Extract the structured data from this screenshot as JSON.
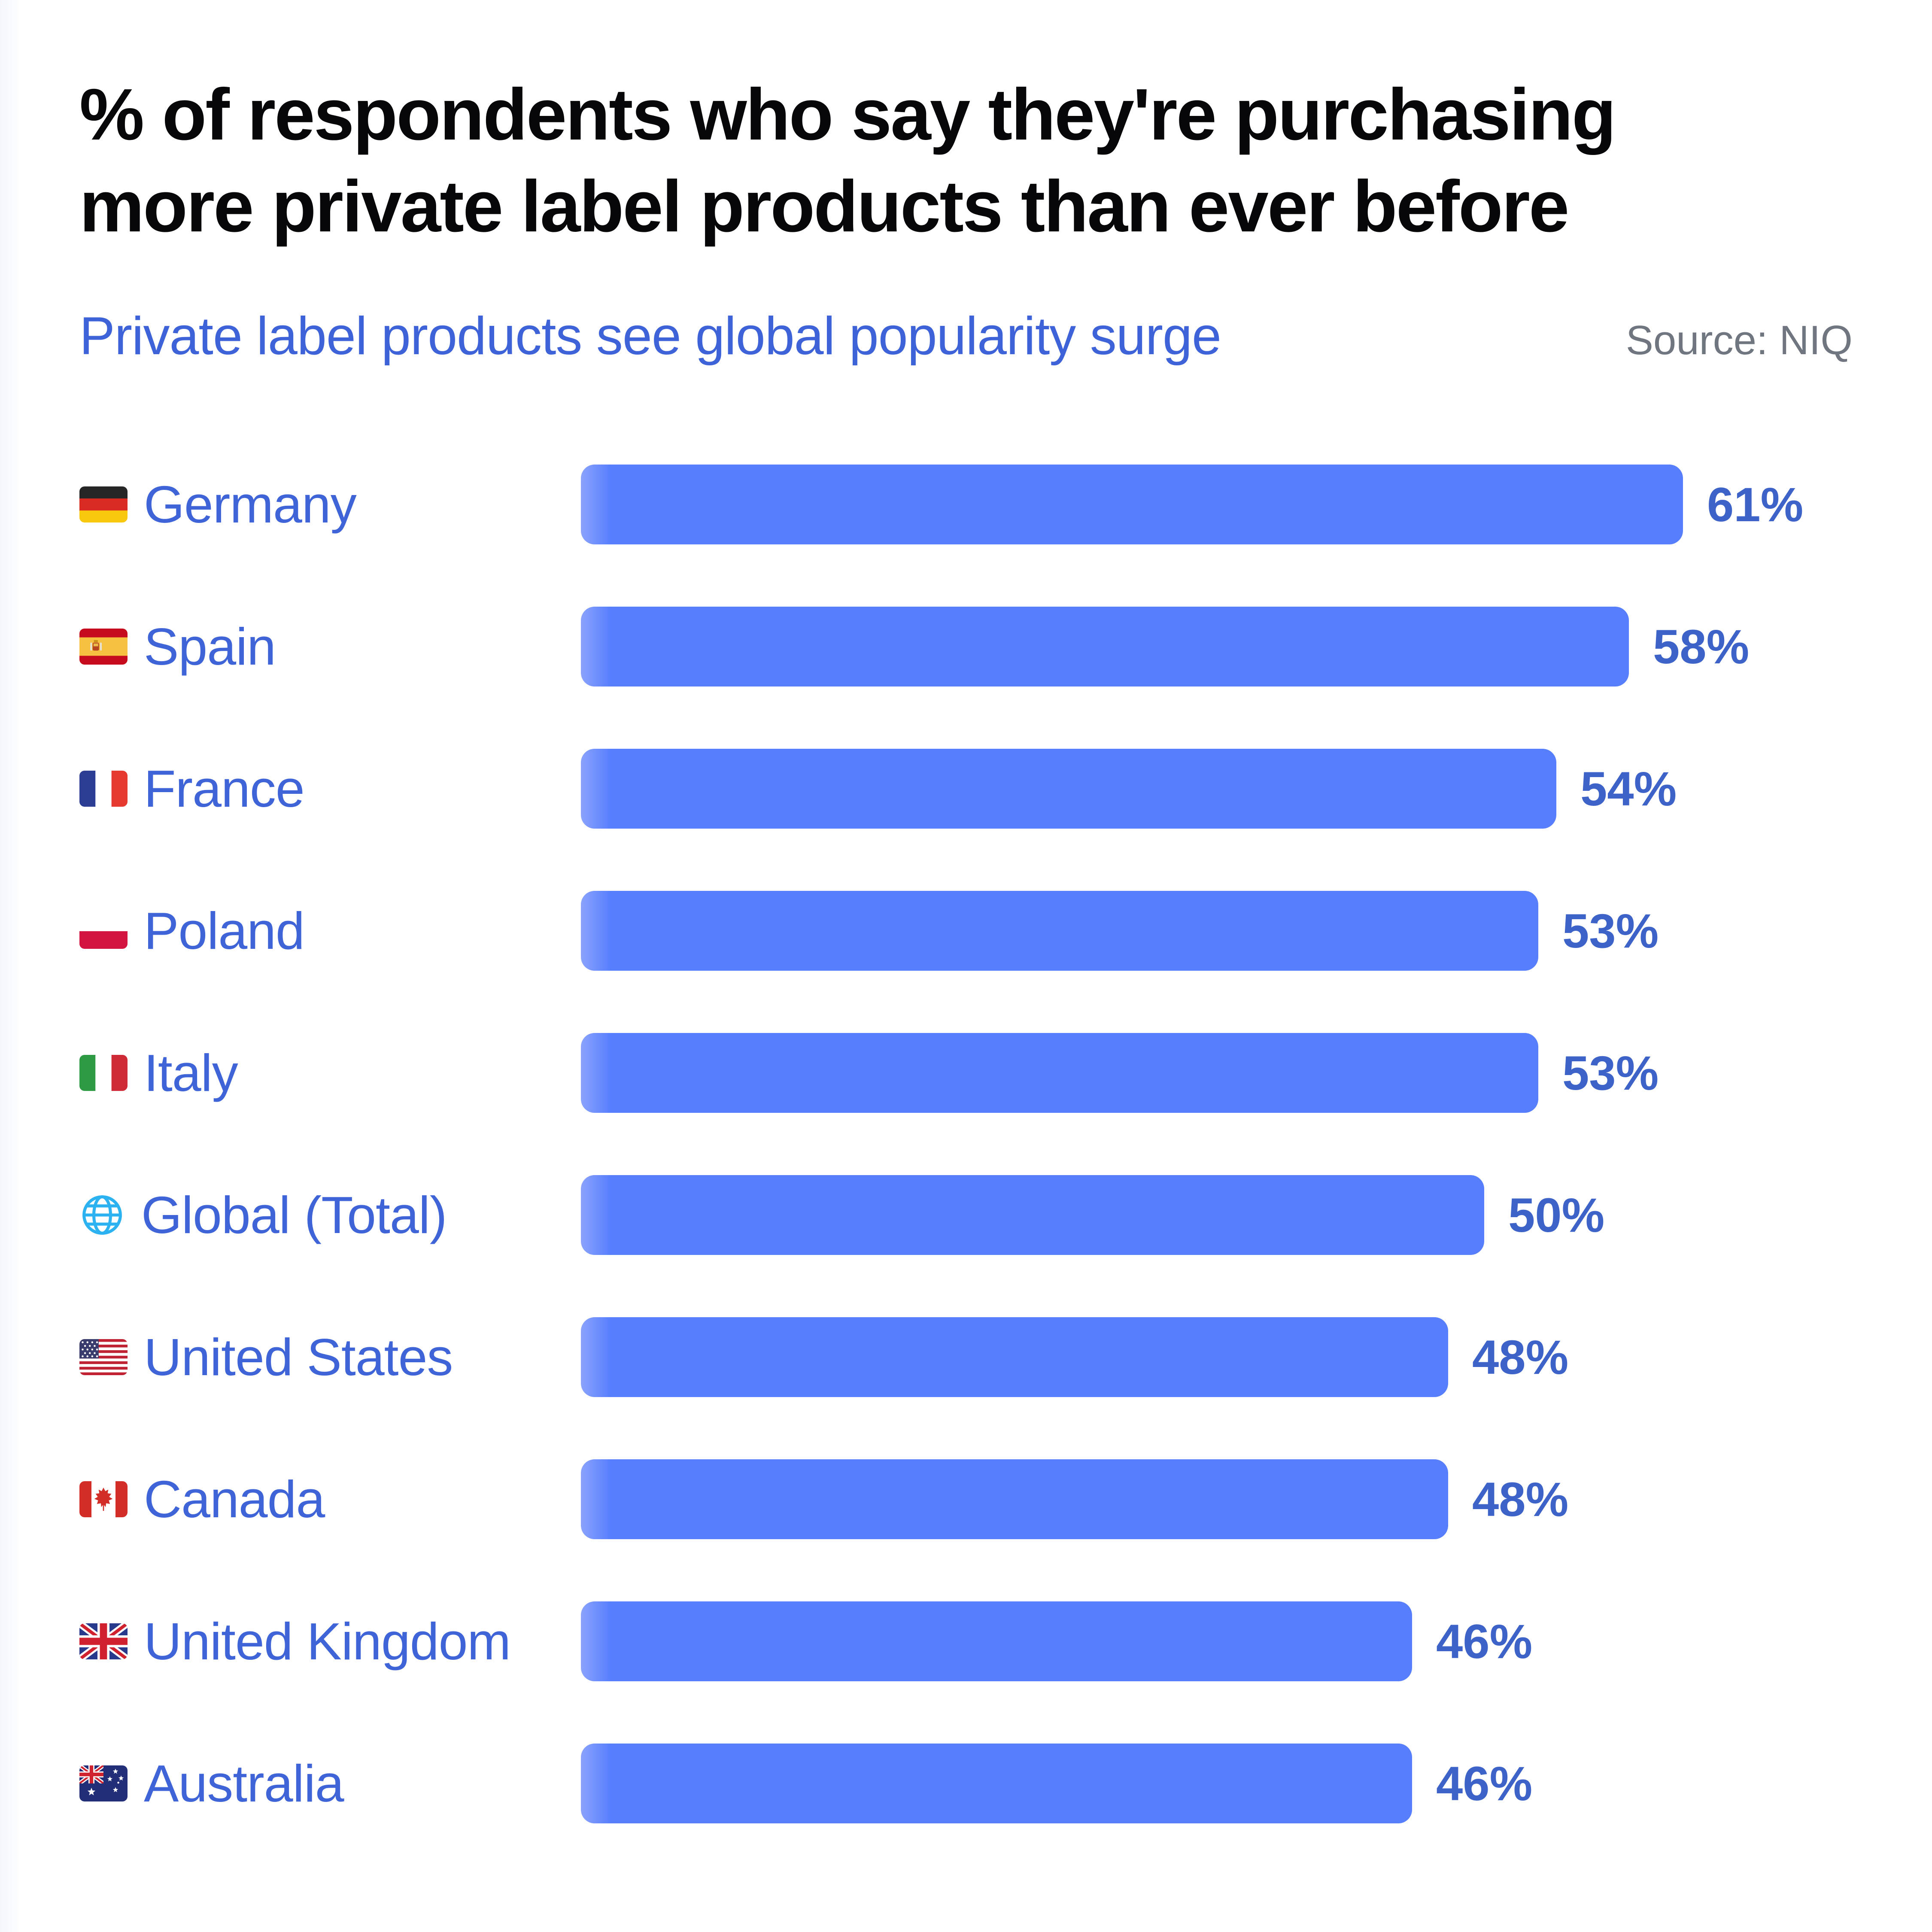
{
  "header": {
    "title_line1": "% of respondents who say they're purchasing",
    "title_line2": "more private label products than ever before",
    "subtitle": "Private label products see global popularity surge",
    "source": "Source: NIQ"
  },
  "chart_data": {
    "type": "bar",
    "orientation": "horizontal",
    "title": "% of respondents who say they're purchasing more private label products than ever before",
    "subtitle": "Private label products see global popularity surge",
    "source": "Source: NIQ",
    "unit": "%",
    "xlim": [
      0,
      61
    ],
    "grid": false,
    "value_labels_position": "outside-end",
    "bar_color": "#567efd",
    "value_label_color": "#3d63c9",
    "category_label_color": "#3f64d8",
    "categories": [
      "Germany",
      "Spain",
      "France",
      "Poland",
      "Italy",
      "Global (Total)",
      "United States",
      "Canada",
      "United Kingdom",
      "Australia"
    ],
    "values": [
      61,
      58,
      54,
      53,
      53,
      50,
      48,
      48,
      46,
      46
    ],
    "rows": [
      {
        "label": "Germany",
        "value": 61,
        "value_label": "61%",
        "icon": "flag-germany-icon"
      },
      {
        "label": "Spain",
        "value": 58,
        "value_label": "58%",
        "icon": "flag-spain-icon"
      },
      {
        "label": "France",
        "value": 54,
        "value_label": "54%",
        "icon": "flag-france-icon"
      },
      {
        "label": "Poland",
        "value": 53,
        "value_label": "53%",
        "icon": "flag-poland-icon"
      },
      {
        "label": "Italy",
        "value": 53,
        "value_label": "53%",
        "icon": "flag-italy-icon"
      },
      {
        "label": "Global (Total)",
        "value": 50,
        "value_label": "50%",
        "icon": "globe-icon"
      },
      {
        "label": "United States",
        "value": 48,
        "value_label": "48%",
        "icon": "flag-united-states-icon"
      },
      {
        "label": "Canada",
        "value": 48,
        "value_label": "48%",
        "icon": "flag-canada-icon"
      },
      {
        "label": "United Kingdom",
        "value": 46,
        "value_label": "46%",
        "icon": "flag-united-kingdom-icon"
      },
      {
        "label": "Australia",
        "value": 46,
        "value_label": "46%",
        "icon": "flag-australia-icon"
      }
    ]
  }
}
